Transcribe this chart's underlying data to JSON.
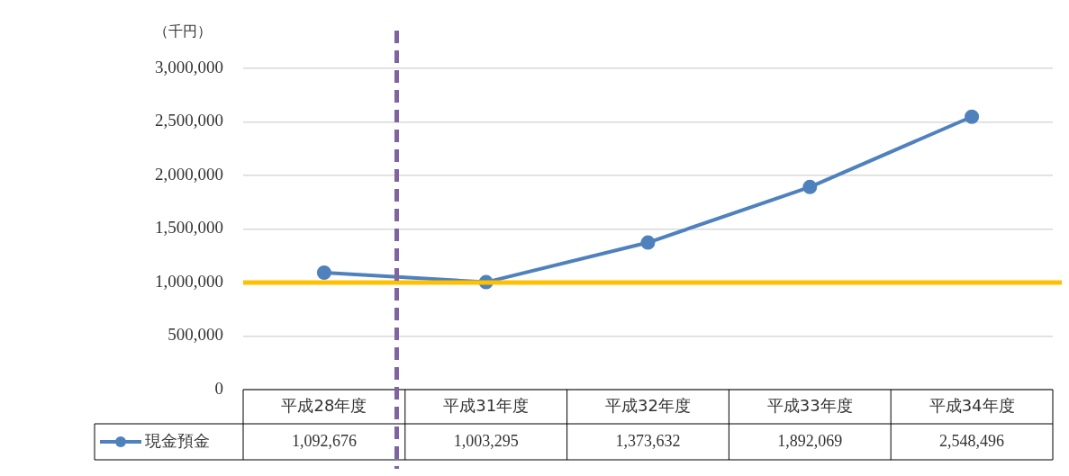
{
  "chart_data": {
    "type": "line",
    "ylabel": "（千円）",
    "categories": [
      "平成28年度",
      "平成31年度",
      "平成32年度",
      "平成33年度",
      "平成34年度"
    ],
    "series": [
      {
        "name": "現金預金",
        "color": "#4f81bd",
        "values": [
          1092676,
          1003295,
          1373632,
          1892069,
          2548496
        ],
        "value_labels": [
          "1,092,676",
          "1,003,295",
          "1,373,632",
          "1,892,069",
          "2,548,496"
        ]
      }
    ],
    "ylim": [
      0,
      3000000
    ],
    "yticks": [
      0,
      {
        "value": 500000,
        "label": "500,000"
      },
      {
        "value": 1000000,
        "label": "1,000,000"
      },
      {
        "value": 1500000,
        "label": "1,500,000"
      },
      {
        "value": 2000000,
        "label": "2,000,000"
      },
      {
        "value": 2500000,
        "label": "2,500,000"
      },
      {
        "value": 3000000,
        "label": "3,000,000"
      }
    ],
    "grid": "y",
    "marker": "circle",
    "ref_lines": [
      {
        "axis": "y",
        "value": 1000000,
        "color": "#ffc000",
        "line_style": "solid"
      }
    ]
  }
}
